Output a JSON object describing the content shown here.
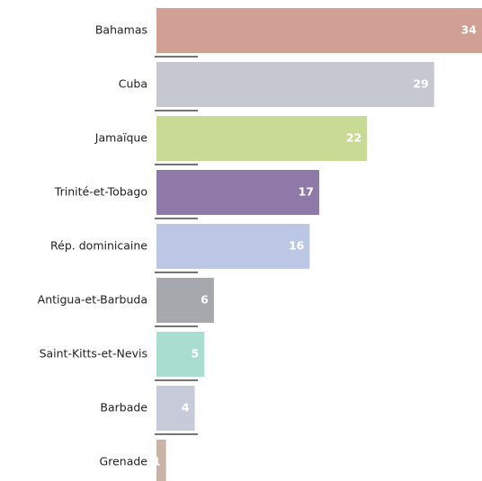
{
  "chart_data": {
    "type": "bar",
    "categories": [
      "Bahamas",
      "Cuba",
      "Jamaïque",
      "Trinité-et-Tobago",
      "Rép. dominicaine",
      "Antigua-et-Barbuda",
      "Saint-Kitts-et-Nevis",
      "Barbade",
      "Grenade"
    ],
    "values": [
      34,
      29,
      22,
      17,
      16,
      6,
      5,
      4,
      1
    ],
    "colors": [
      "#cfa093",
      "#c6c8d1",
      "#c9da94",
      "#8f79a8",
      "#bcc7e6",
      "#a6a8ae",
      "#a8ddcf",
      "#c6cad9",
      "#c8b3a6"
    ]
  }
}
